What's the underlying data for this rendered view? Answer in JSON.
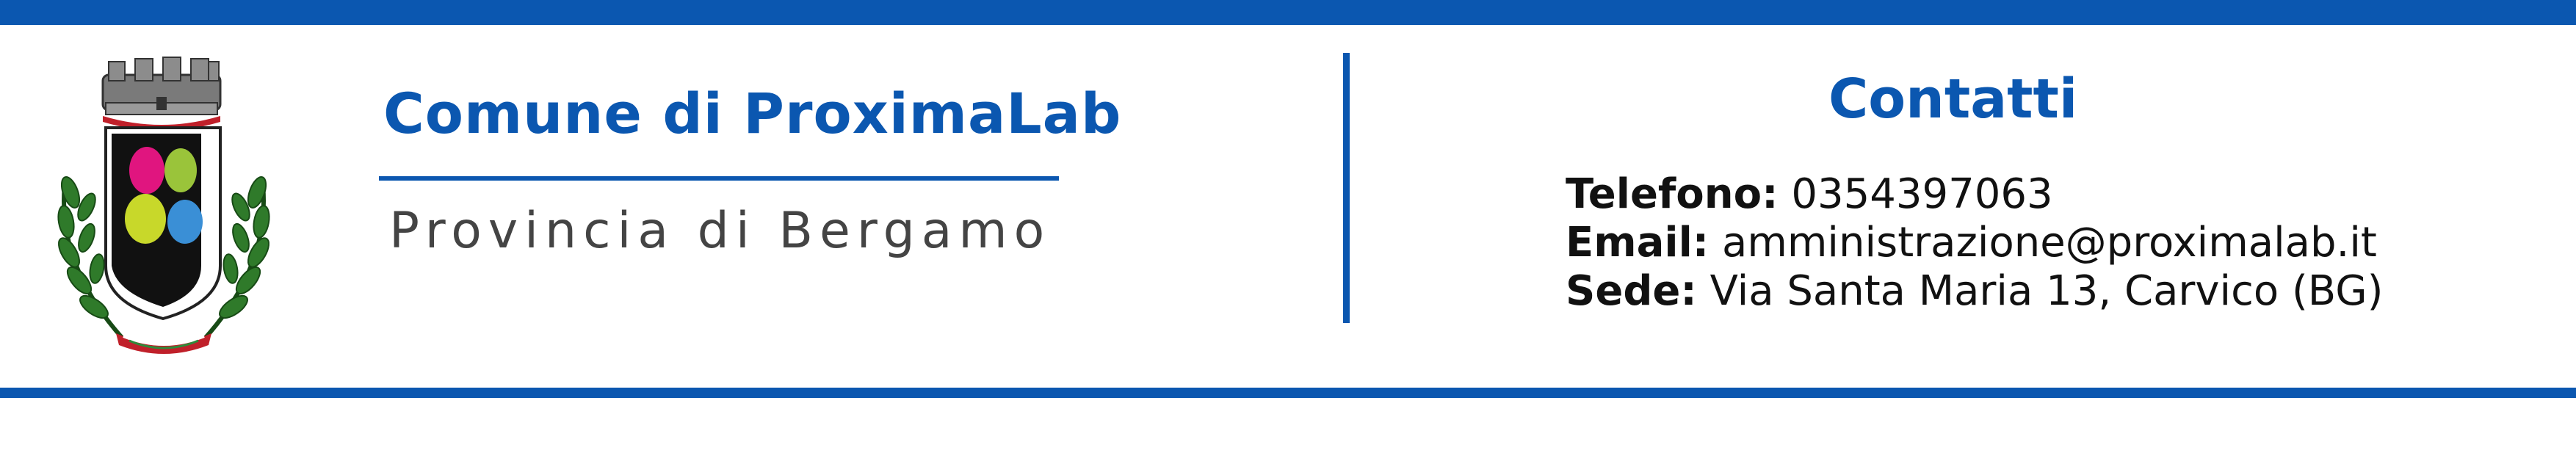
{
  "header": {
    "title": "Comune di ProximaLab",
    "subtitle": "Provincia di Bergamo"
  },
  "contacts": {
    "heading": "Contatti",
    "phone_label": "Telefono:",
    "phone_value": "0354397063",
    "email_label": "Email:",
    "email_value": "amministrazione@proximalab.it",
    "address_label": "Sede:",
    "address_value": "Via Santa Maria 13, Carvico (BG)"
  },
  "colors": {
    "brand_blue": "#0b57b0",
    "text_dark": "#111111",
    "text_grey": "#444444"
  },
  "icons": {
    "crest": "municipal-coat-of-arms-icon"
  }
}
